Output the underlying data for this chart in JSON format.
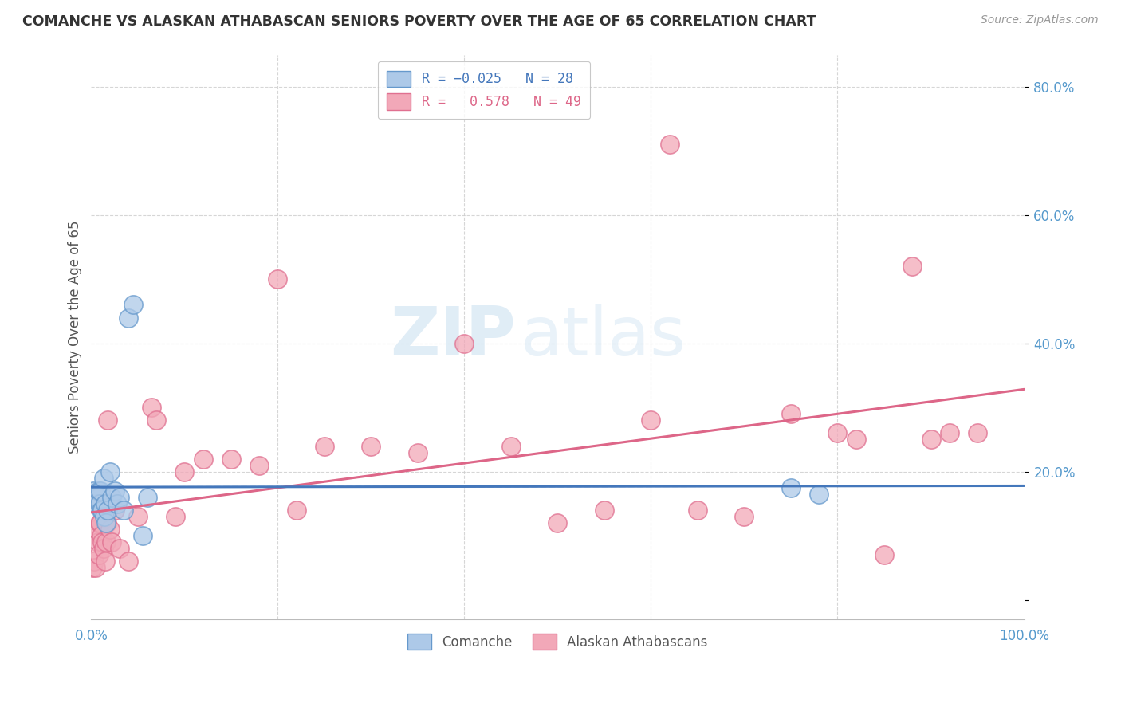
{
  "title": "COMANCHE VS ALASKAN ATHABASCAN SENIORS POVERTY OVER THE AGE OF 65 CORRELATION CHART",
  "source": "Source: ZipAtlas.com",
  "ylabel": "Seniors Poverty Over the Age of 65",
  "comanche_R": -0.025,
  "comanche_N": 28,
  "alaskan_R": 0.578,
  "alaskan_N": 49,
  "comanche_x": [
    0.002,
    0.003,
    0.004,
    0.005,
    0.006,
    0.007,
    0.008,
    0.009,
    0.01,
    0.011,
    0.012,
    0.013,
    0.014,
    0.015,
    0.016,
    0.018,
    0.02,
    0.022,
    0.025,
    0.028,
    0.03,
    0.035,
    0.04,
    0.045,
    0.055,
    0.06,
    0.75,
    0.78
  ],
  "comanche_y": [
    0.17,
    0.16,
    0.15,
    0.16,
    0.15,
    0.16,
    0.17,
    0.15,
    0.17,
    0.14,
    0.14,
    0.19,
    0.13,
    0.15,
    0.12,
    0.14,
    0.2,
    0.16,
    0.17,
    0.15,
    0.16,
    0.14,
    0.44,
    0.46,
    0.1,
    0.16,
    0.175,
    0.165
  ],
  "alaskan_x": [
    0.001,
    0.003,
    0.005,
    0.006,
    0.007,
    0.008,
    0.009,
    0.01,
    0.011,
    0.012,
    0.013,
    0.015,
    0.016,
    0.017,
    0.018,
    0.02,
    0.022,
    0.025,
    0.03,
    0.04,
    0.05,
    0.065,
    0.07,
    0.09,
    0.1,
    0.12,
    0.15,
    0.18,
    0.2,
    0.22,
    0.25,
    0.3,
    0.35,
    0.4,
    0.45,
    0.5,
    0.55,
    0.6,
    0.62,
    0.65,
    0.7,
    0.75,
    0.8,
    0.82,
    0.85,
    0.88,
    0.9,
    0.92,
    0.95
  ],
  "alaskan_y": [
    0.05,
    0.06,
    0.05,
    0.11,
    0.09,
    0.07,
    0.12,
    0.12,
    0.1,
    0.09,
    0.08,
    0.06,
    0.09,
    0.12,
    0.28,
    0.11,
    0.09,
    0.14,
    0.08,
    0.06,
    0.13,
    0.3,
    0.28,
    0.13,
    0.2,
    0.22,
    0.22,
    0.21,
    0.5,
    0.14,
    0.24,
    0.24,
    0.23,
    0.4,
    0.24,
    0.12,
    0.14,
    0.28,
    0.71,
    0.14,
    0.13,
    0.29,
    0.26,
    0.25,
    0.07,
    0.52,
    0.25,
    0.26,
    0.26
  ],
  "comanche_color": "#adc9e8",
  "alaskan_color": "#f2a8b8",
  "comanche_scatter_edge": "#6699cc",
  "alaskan_scatter_edge": "#e07090",
  "comanche_line_color": "#4477bb",
  "alaskan_line_color": "#dd6688",
  "dashed_comanche_color": "#99bbdd",
  "dashed_alaskan_color": "#f0b0c0",
  "background_color": "#ffffff",
  "grid_color": "#cccccc",
  "watermark_zip": "ZIP",
  "watermark_atlas": "atlas",
  "xlim": [
    0,
    1.0
  ],
  "ylim": [
    -0.03,
    0.85
  ],
  "yticks": [
    0.0,
    0.2,
    0.4,
    0.6,
    0.8
  ],
  "xticks": [
    0.0,
    0.2,
    0.4,
    0.6,
    0.8,
    1.0
  ]
}
